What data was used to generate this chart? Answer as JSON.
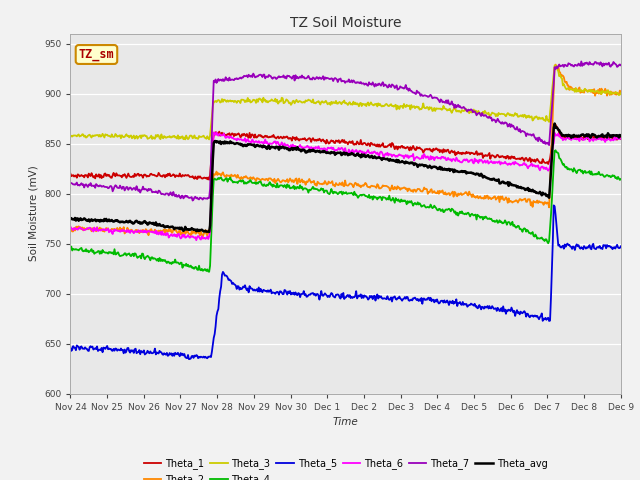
{
  "title": "TZ Soil Moisture",
  "xlabel": "Time",
  "ylabel": "Soil Moisture (mV)",
  "ylim": [
    600,
    960
  ],
  "yticks": [
    600,
    650,
    700,
    750,
    800,
    850,
    900,
    950
  ],
  "figsize": [
    6.4,
    4.8
  ],
  "dpi": 100,
  "background_color": "#f2f2f2",
  "plot_bg_color": "#e8e8e8",
  "legend_label": "TZ_sm",
  "series_colors": {
    "Theta_1": "#cc0000",
    "Theta_2": "#ff8800",
    "Theta_3": "#cccc00",
    "Theta_4": "#00bb00",
    "Theta_5": "#0000dd",
    "Theta_6": "#ff00ff",
    "Theta_7": "#9900bb",
    "Theta_avg": "#000000"
  },
  "tick_labels": [
    "Nov 24",
    "Nov 25",
    "Nov 26",
    "Nov 27",
    "Nov 28",
    "Nov 29",
    "Nov 30",
    "Dec 1",
    "Dec 2",
    "Dec 3",
    "Dec 4",
    "Dec 5",
    "Dec 6",
    "Dec 7",
    "Dec 8",
    "Dec 9"
  ]
}
